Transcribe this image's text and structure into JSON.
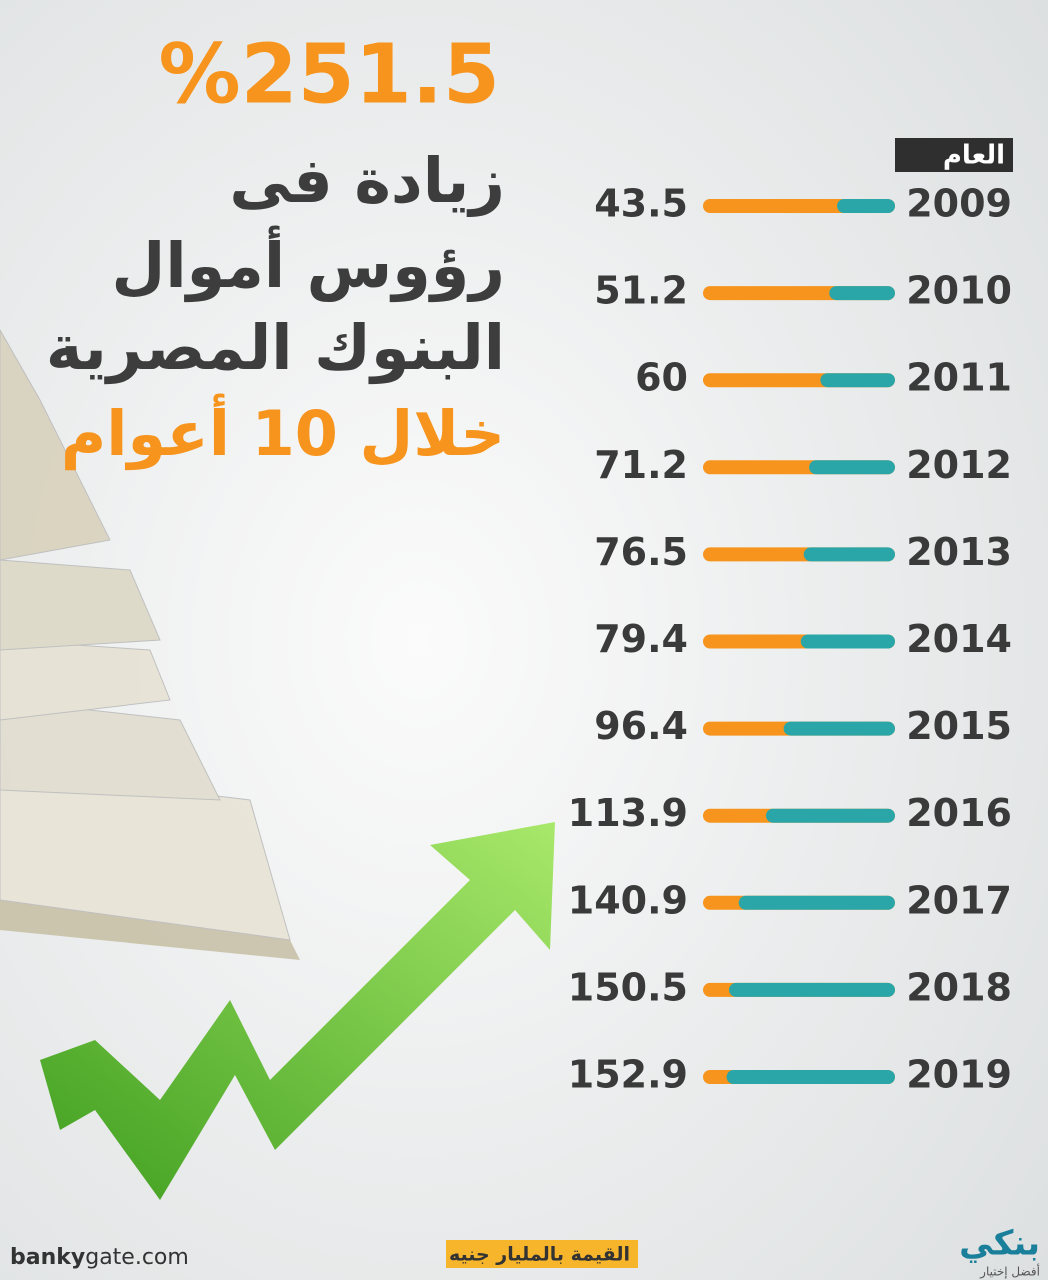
{
  "chart_data": {
    "type": "bar",
    "orientation": "horizontal",
    "title": "%251.5",
    "subtitle_lines": [
      "زيادة فى",
      "رؤوس أموال",
      "البنوك المصرية"
    ],
    "highlight": "خلال 10 أعوام",
    "category_header": "العام",
    "categories": [
      "2009",
      "2010",
      "2011",
      "2012",
      "2013",
      "2014",
      "2015",
      "2016",
      "2017",
      "2018",
      "2019"
    ],
    "values": [
      43.5,
      51.2,
      60,
      71.2,
      76.5,
      79.4,
      96.4,
      113.9,
      140.9,
      150.5,
      152.9
    ],
    "color": "#2ba6a8",
    "track_color": "#f7941d",
    "unit_note": "القيمة بالمليار جنيه",
    "site": {
      "bold": "banky",
      "rest": "gate.com"
    },
    "logo": {
      "name": "بنكي",
      "tagline": "أفضل إختيار"
    }
  }
}
